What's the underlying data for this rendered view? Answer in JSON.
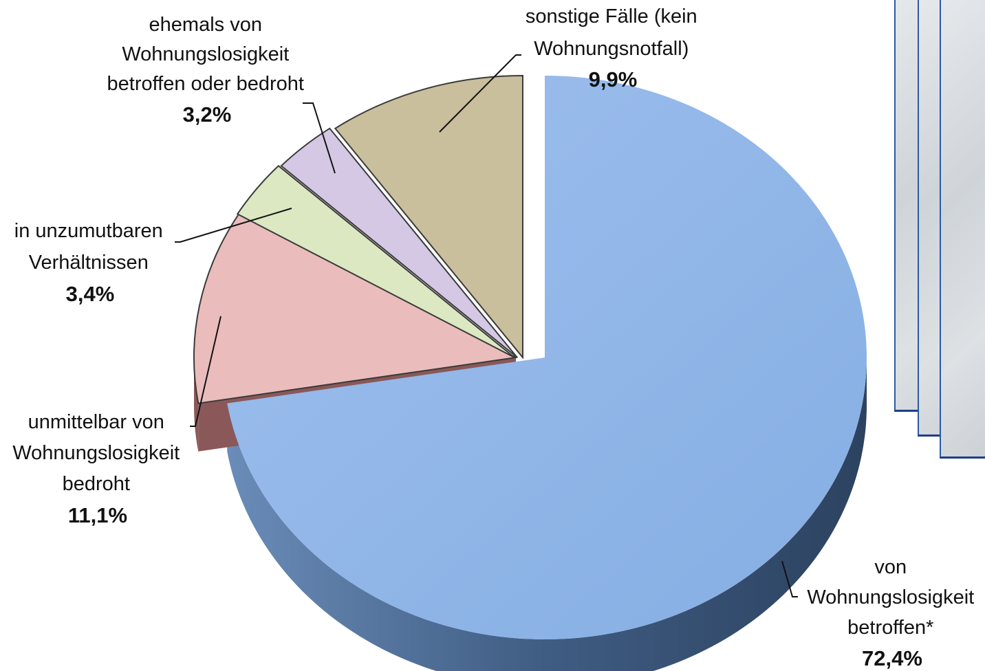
{
  "chart_data": {
    "type": "pie",
    "title": "",
    "slices": [
      {
        "label_lines": [
          "von",
          "Wohnungslosigkeit",
          "betroffen*"
        ],
        "value": 72.4,
        "value_label": "72,4%",
        "color": "#8db5e8",
        "side_color": "#4a6a90"
      },
      {
        "label_lines": [
          "unmittelbar von",
          "Wohnungslosigkeit",
          "bedroht"
        ],
        "value": 11.1,
        "value_label": "11,1%",
        "color": "#ebbcbc",
        "side_color": "#8a5858"
      },
      {
        "label_lines": [
          "in unzumutbaren",
          "Verhältnissen"
        ],
        "value": 3.4,
        "value_label": "3,4%",
        "color": "#dbe8c2",
        "side_color": "#7f8a6a"
      },
      {
        "label_lines": [
          "ehemals von",
          "Wohnungslosigkeit",
          "betroffen oder bedroht"
        ],
        "value": 3.2,
        "value_label": "3,2%",
        "color": "#d4c8e4",
        "side_color": "#7a6e8a"
      },
      {
        "label_lines": [
          "sonstige Fälle (kein",
          "Wohnungsnotfall)"
        ],
        "value": 9.9,
        "value_label": "9,9%",
        "color": "#c9bf9d",
        "side_color": "#7d7558"
      }
    ]
  }
}
